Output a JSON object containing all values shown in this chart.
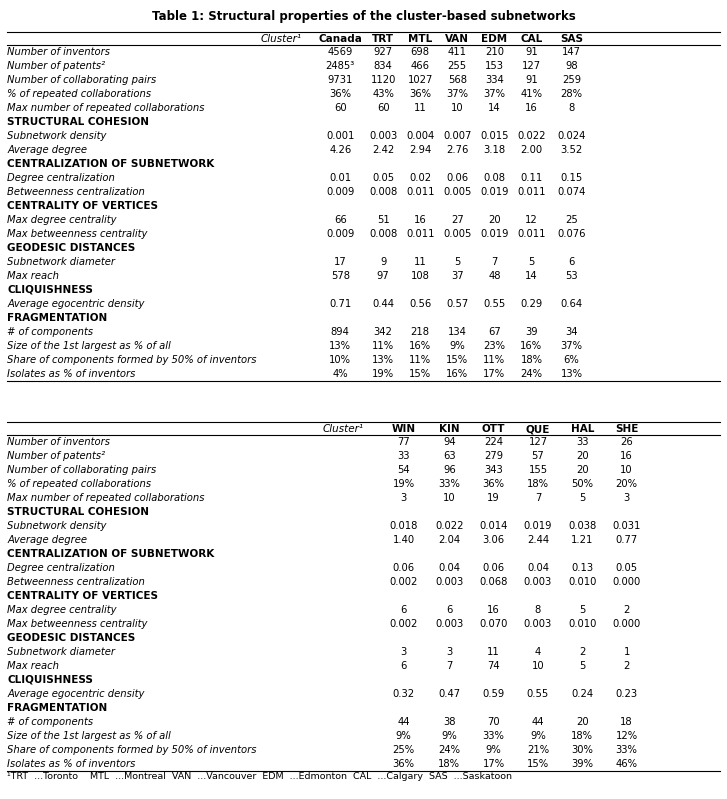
{
  "title": "Table 1: Structural properties of the cluster-based subnetworks",
  "footnote": "¹TRT  ...Toronto    MTL  ...Montreal  VAN  ...Vancouver  EDM  ...Edmonton  CAL  ...Calgary  SAS  ...Saskatoon",
  "table1_header": [
    "Cluster¹",
    "Canada",
    "TRT",
    "MTL",
    "VAN",
    "EDM",
    "CAL",
    "SAS"
  ],
  "table2_header": [
    "Cluster¹",
    "WIN",
    "KIN",
    "OTT",
    "QUE",
    "HAL",
    "SHE"
  ],
  "rows": [
    {
      "label": "Number of inventors",
      "italic": true,
      "bold": false,
      "section": false,
      "vals1": [
        "4569",
        "927",
        "698",
        "411",
        "210",
        "91",
        "147"
      ],
      "vals2": [
        "77",
        "94",
        "224",
        "127",
        "33",
        "26"
      ]
    },
    {
      "label": "Number of patents²",
      "italic": true,
      "bold": false,
      "section": false,
      "vals1": [
        "2485³",
        "834",
        "466",
        "255",
        "153",
        "127",
        "98"
      ],
      "vals2": [
        "33",
        "63",
        "279",
        "57",
        "20",
        "16"
      ]
    },
    {
      "label": "Number of collaborating pairs",
      "italic": true,
      "bold": false,
      "section": false,
      "vals1": [
        "9731",
        "1120",
        "1027",
        "568",
        "334",
        "91",
        "259"
      ],
      "vals2": [
        "54",
        "96",
        "343",
        "155",
        "20",
        "10"
      ]
    },
    {
      "label": "% of repeated collaborations",
      "italic": true,
      "bold": false,
      "section": false,
      "vals1": [
        "36%",
        "43%",
        "36%",
        "37%",
        "37%",
        "41%",
        "28%"
      ],
      "vals2": [
        "19%",
        "33%",
        "36%",
        "18%",
        "50%",
        "20%"
      ]
    },
    {
      "label": "Max number of repeated collaborations",
      "italic": true,
      "bold": false,
      "section": false,
      "vals1": [
        "60",
        "60",
        "11",
        "10",
        "14",
        "16",
        "8"
      ],
      "vals2": [
        "3",
        "10",
        "19",
        "7",
        "5",
        "3"
      ]
    },
    {
      "label": "STRUCTURAL COHESION",
      "italic": false,
      "bold": true,
      "section": true,
      "vals1": [
        "",
        "",
        "",
        "",
        "",
        "",
        ""
      ],
      "vals2": [
        "",
        "",
        "",
        "",
        "",
        ""
      ]
    },
    {
      "label": "Subnetwork density",
      "italic": true,
      "bold": false,
      "section": false,
      "vals1": [
        "0.001",
        "0.003",
        "0.004",
        "0.007",
        "0.015",
        "0.022",
        "0.024"
      ],
      "vals2": [
        "0.018",
        "0.022",
        "0.014",
        "0.019",
        "0.038",
        "0.031"
      ]
    },
    {
      "label": "Average degree",
      "italic": true,
      "bold": false,
      "section": false,
      "vals1": [
        "4.26",
        "2.42",
        "2.94",
        "2.76",
        "3.18",
        "2.00",
        "3.52"
      ],
      "vals2": [
        "1.40",
        "2.04",
        "3.06",
        "2.44",
        "1.21",
        "0.77"
      ]
    },
    {
      "label": "CENTRALIZATION OF SUBNETWORK",
      "italic": false,
      "bold": true,
      "section": true,
      "vals1": [
        "",
        "",
        "",
        "",
        "",
        "",
        ""
      ],
      "vals2": [
        "",
        "",
        "",
        "",
        "",
        ""
      ]
    },
    {
      "label": "Degree centralization",
      "italic": true,
      "bold": false,
      "section": false,
      "vals1": [
        "0.01",
        "0.05",
        "0.02",
        "0.06",
        "0.08",
        "0.11",
        "0.15"
      ],
      "vals2": [
        "0.06",
        "0.04",
        "0.06",
        "0.04",
        "0.13",
        "0.05"
      ]
    },
    {
      "label": "Betweenness centralization",
      "italic": true,
      "bold": false,
      "section": false,
      "vals1": [
        "0.009",
        "0.008",
        "0.011",
        "0.005",
        "0.019",
        "0.011",
        "0.074"
      ],
      "vals2": [
        "0.002",
        "0.003",
        "0.068",
        "0.003",
        "0.010",
        "0.000"
      ]
    },
    {
      "label": "CENTRALITY OF VERTICES",
      "italic": false,
      "bold": true,
      "section": true,
      "vals1": [
        "",
        "",
        "",
        "",
        "",
        "",
        ""
      ],
      "vals2": [
        "",
        "",
        "",
        "",
        "",
        ""
      ]
    },
    {
      "label": "Max degree centrality",
      "italic": true,
      "bold": false,
      "section": false,
      "vals1": [
        "66",
        "51",
        "16",
        "27",
        "20",
        "12",
        "25"
      ],
      "vals2": [
        "6",
        "6",
        "16",
        "8",
        "5",
        "2"
      ]
    },
    {
      "label": "Max betweenness centrality",
      "italic": true,
      "bold": false,
      "section": false,
      "vals1": [
        "0.009",
        "0.008",
        "0.011",
        "0.005",
        "0.019",
        "0.011",
        "0.076"
      ],
      "vals2": [
        "0.002",
        "0.003",
        "0.070",
        "0.003",
        "0.010",
        "0.000"
      ]
    },
    {
      "label": "GEODESIC DISTANCES",
      "italic": false,
      "bold": true,
      "section": true,
      "vals1": [
        "",
        "",
        "",
        "",
        "",
        "",
        ""
      ],
      "vals2": [
        "",
        "",
        "",
        "",
        "",
        ""
      ]
    },
    {
      "label": "Subnetwork diameter",
      "italic": true,
      "bold": false,
      "section": false,
      "vals1": [
        "17",
        "9",
        "11",
        "5",
        "7",
        "5",
        "6"
      ],
      "vals2": [
        "3",
        "3",
        "11",
        "4",
        "2",
        "1"
      ]
    },
    {
      "label": "Max reach",
      "italic": true,
      "bold": false,
      "section": false,
      "vals1": [
        "578",
        "97",
        "108",
        "37",
        "48",
        "14",
        "53"
      ],
      "vals2": [
        "6",
        "7",
        "74",
        "10",
        "5",
        "2"
      ]
    },
    {
      "label": "CLIQUISHNESS",
      "italic": false,
      "bold": true,
      "section": true,
      "vals1": [
        "",
        "",
        "",
        "",
        "",
        "",
        ""
      ],
      "vals2": [
        "",
        "",
        "",
        "",
        "",
        ""
      ]
    },
    {
      "label": "Average egocentric density",
      "italic": true,
      "bold": false,
      "section": false,
      "vals1": [
        "0.71",
        "0.44",
        "0.56",
        "0.57",
        "0.55",
        "0.29",
        "0.64"
      ],
      "vals2": [
        "0.32",
        "0.47",
        "0.59",
        "0.55",
        "0.24",
        "0.23"
      ]
    },
    {
      "label": "FRAGMENTATION",
      "italic": false,
      "bold": true,
      "section": true,
      "vals1": [
        "",
        "",
        "",
        "",
        "",
        "",
        ""
      ],
      "vals2": [
        "",
        "",
        "",
        "",
        "",
        ""
      ]
    },
    {
      "label": "# of components",
      "italic": true,
      "bold": false,
      "section": false,
      "vals1": [
        "894",
        "342",
        "218",
        "134",
        "67",
        "39",
        "34"
      ],
      "vals2": [
        "44",
        "38",
        "70",
        "44",
        "20",
        "18"
      ]
    },
    {
      "label": "Size of the 1st largest as % of all",
      "italic": true,
      "bold": false,
      "section": false,
      "vals1": [
        "13%",
        "11%",
        "16%",
        "9%",
        "23%",
        "16%",
        "37%"
      ],
      "vals2": [
        "9%",
        "9%",
        "33%",
        "9%",
        "18%",
        "12%"
      ]
    },
    {
      "label": "Share of components formed by 50% of inventors",
      "italic": true,
      "bold": false,
      "section": false,
      "vals1": [
        "10%",
        "13%",
        "11%",
        "15%",
        "11%",
        "18%",
        "6%"
      ],
      "vals2": [
        "25%",
        "24%",
        "9%",
        "21%",
        "30%",
        "33%"
      ]
    },
    {
      "label": "Isolates as % of inventors",
      "italic": true,
      "bold": false,
      "section": false,
      "vals1": [
        "4%",
        "19%",
        "15%",
        "16%",
        "17%",
        "24%",
        "13%"
      ],
      "vals2": [
        "36%",
        "18%",
        "17%",
        "15%",
        "39%",
        "46%"
      ]
    }
  ],
  "bg_color": "#ffffff",
  "text_color": "#000000",
  "title_fontsize": 8.5,
  "header_fontsize": 7.5,
  "row_fontsize": 7.2,
  "section_fontsize": 7.5,
  "footnote_fontsize": 6.8
}
